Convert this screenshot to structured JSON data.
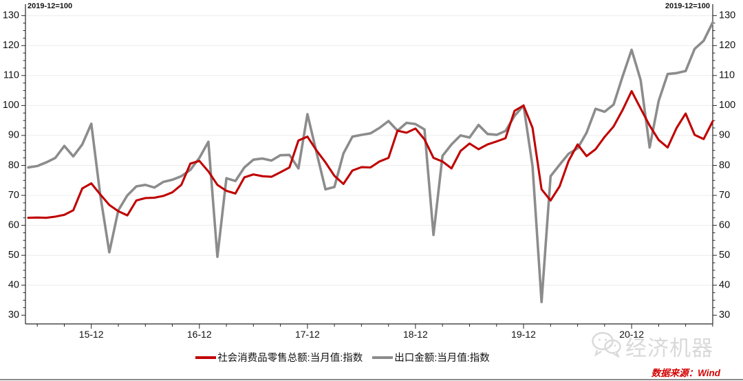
{
  "annotations": {
    "top_left_note": "2019-12=100",
    "top_right_note": "2019-12=100"
  },
  "axis": {
    "y_tick_labels": [
      30,
      40,
      50,
      60,
      70,
      80,
      90,
      100,
      110,
      120,
      130
    ],
    "x_tick_labels": [
      "15-12",
      "16-12",
      "17-12",
      "18-12",
      "19-12",
      "20-12"
    ]
  },
  "legend": {
    "items": [
      {
        "label": "社会消费品零售总额:当月值:指数",
        "color": "#c00000"
      },
      {
        "label": "出口金额:当月值:指数",
        "color": "#8c8c8c"
      }
    ]
  },
  "watermark": {
    "icon": "wechat-chat-bubbles-icon",
    "text": "经济机器"
  },
  "footer": {
    "source_note": "数据来源：Wind"
  },
  "chart_data": {
    "type": "line",
    "title": "",
    "note": "2019-12=100",
    "x_start": "2015-05",
    "x_end": "2021-09",
    "x_major_ticks": [
      "15-12",
      "16-12",
      "17-12",
      "18-12",
      "19-12",
      "20-12"
    ],
    "ylim": [
      30,
      130
    ],
    "y_tick_step": 10,
    "grid": "horizontal-only",
    "legend_position": "bottom-center",
    "series": [
      {
        "name": "社会消费品零售总额:当月值:指数",
        "color": "#c00000",
        "values": [
          62.5,
          62.6,
          62.5,
          62.9,
          63.5,
          65.0,
          72.3,
          74.0,
          70.3,
          66.8,
          64.7,
          63.3,
          68.3,
          69.1,
          69.2,
          69.8,
          71.0,
          73.5,
          80.6,
          81.5,
          78.0,
          73.5,
          71.5,
          70.6,
          76.0,
          77.0,
          76.4,
          76.2,
          77.7,
          79.3,
          88.3,
          89.6,
          85.0,
          81.0,
          76.5,
          73.8,
          78.3,
          79.4,
          79.3,
          81.3,
          82.5,
          91.6,
          90.9,
          92.3,
          88.7,
          82.5,
          81.3,
          79.0,
          84.8,
          87.3,
          85.4,
          87.0,
          88.0,
          89.1,
          98.2,
          100.0,
          92.5,
          72.0,
          68.3,
          73.0,
          81.5,
          87.0,
          83.1,
          85.4,
          89.5,
          93.0,
          98.5,
          104.8,
          99.0,
          93.3,
          88.5,
          86.0,
          92.5,
          97.3,
          90.2,
          88.8,
          94.7
        ]
      },
      {
        "name": "出口金额:当月值:指数",
        "color": "#8c8c8c",
        "values": [
          79.3,
          79.8,
          81.0,
          82.5,
          86.5,
          83.0,
          87.0,
          93.9,
          70.0,
          51.0,
          65.0,
          70.0,
          73.0,
          73.5,
          72.6,
          74.5,
          75.2,
          76.4,
          78.5,
          82.5,
          87.9,
          49.5,
          75.7,
          74.8,
          79.3,
          81.9,
          82.3,
          81.6,
          83.4,
          83.5,
          79.0,
          97.1,
          84.4,
          72.0,
          72.8,
          84.0,
          89.6,
          90.2,
          90.7,
          92.5,
          94.8,
          91.6,
          94.2,
          93.8,
          92.0,
          56.8,
          83.2,
          87.0,
          90.0,
          89.3,
          93.5,
          90.5,
          90.2,
          91.5,
          96.5,
          100.0,
          79.7,
          34.4,
          76.4,
          80.2,
          83.9,
          85.7,
          90.9,
          98.9,
          97.9,
          100.3,
          109.7,
          118.6,
          108.5,
          86.0,
          101.5,
          110.5,
          110.8,
          111.5,
          118.9,
          121.6,
          127.7
        ]
      }
    ]
  }
}
